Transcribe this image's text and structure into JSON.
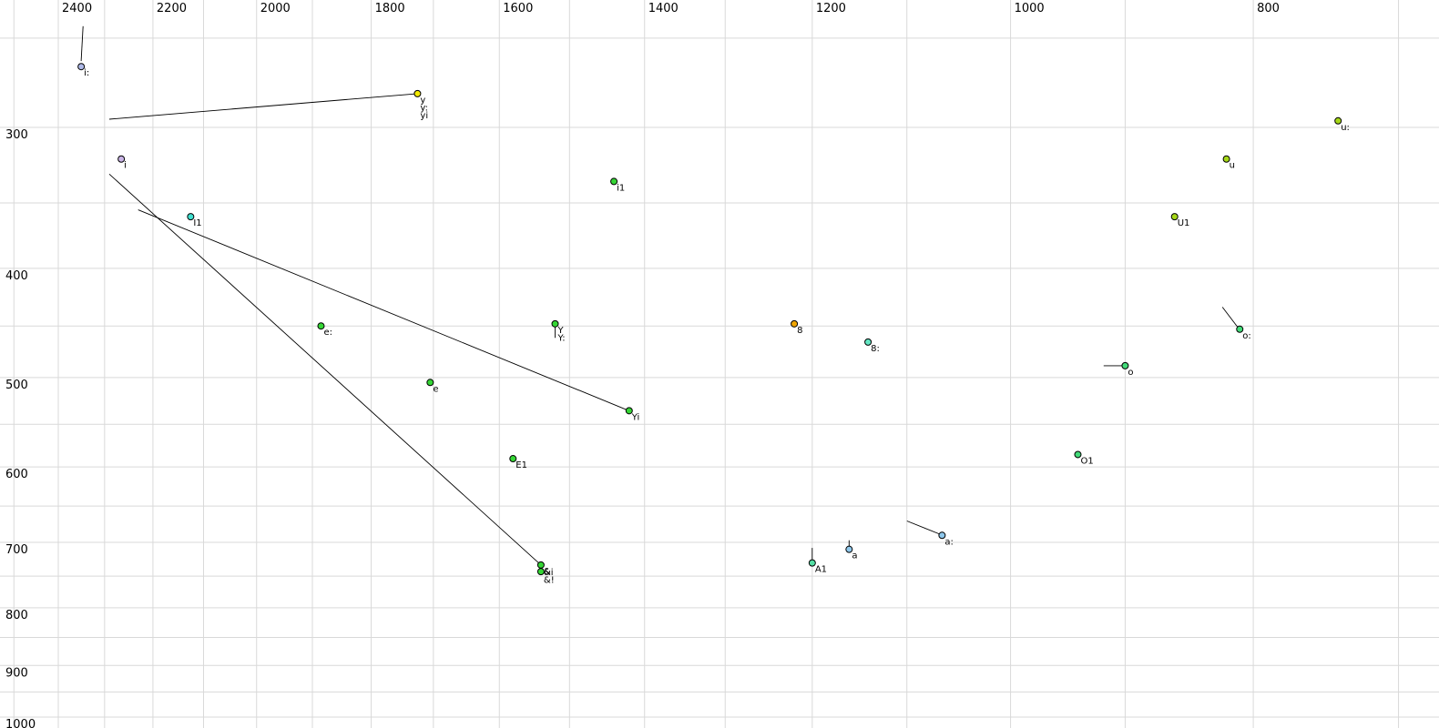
{
  "chart_data": {
    "type": "scatter",
    "description": "Vowel formant plot, F2 (Hz) on reversed log x-axis vs F1 (Hz) on log y-axis",
    "x_axis": {
      "unit": "Hz",
      "scale": "log",
      "reversed": true,
      "tick_labels": [
        2400,
        2200,
        2000,
        1800,
        1600,
        1400,
        1200,
        1000,
        800
      ],
      "gridlines": [
        2500,
        2400,
        2300,
        2200,
        2100,
        2000,
        1900,
        1800,
        1700,
        1600,
        1500,
        1400,
        1300,
        1200,
        1100,
        1000,
        900,
        800,
        700
      ]
    },
    "y_axis": {
      "unit": "Hz",
      "scale": "log",
      "tick_labels": [
        300,
        400,
        500,
        600,
        700,
        800,
        900,
        1000
      ],
      "gridlines": [
        250,
        300,
        350,
        400,
        450,
        500,
        550,
        600,
        650,
        700,
        750,
        800,
        850,
        900,
        950,
        1000
      ]
    },
    "grid_color": "#d9d9d9",
    "line_color": "#000000",
    "points": [
      {
        "labels": [
          "i:"
        ],
        "f2": 2350,
        "f1": 265,
        "color": "#aeb9e8"
      },
      {
        "labels": [
          "y",
          "y:",
          "yi"
        ],
        "f2": 1725,
        "f1": 280,
        "color": "#f2e900"
      },
      {
        "labels": [
          "i"
        ],
        "f2": 2265,
        "f1": 320,
        "color": "#c9b4e6"
      },
      {
        "labels": [
          "I1"
        ],
        "f2": 2125,
        "f1": 360,
        "color": "#40e0d0"
      },
      {
        "labels": [
          "i1"
        ],
        "f2": 1440,
        "f1": 335,
        "color": "#35d635"
      },
      {
        "labels": [
          "u:"
        ],
        "f2": 740,
        "f1": 296,
        "color": "#a5d717"
      },
      {
        "labels": [
          "u"
        ],
        "f2": 820,
        "f1": 320,
        "color": "#a5d717"
      },
      {
        "labels": [
          "U1"
        ],
        "f2": 860,
        "f1": 360,
        "color": "#a5d717"
      },
      {
        "labels": [
          "e:"
        ],
        "f2": 1885,
        "f1": 450,
        "color": "#35d635"
      },
      {
        "labels": [
          "Y",
          "Y:"
        ],
        "f2": 1520,
        "f1": 448,
        "color": "#35d635"
      },
      {
        "labels": [
          "8"
        ],
        "f2": 1220,
        "f1": 448,
        "color": "#f0a500"
      },
      {
        "labels": [
          "8:"
        ],
        "f2": 1140,
        "f1": 465,
        "color": "#63e6c3"
      },
      {
        "labels": [
          "o:"
        ],
        "f2": 810,
        "f1": 453,
        "color": "#42da78"
      },
      {
        "labels": [
          "o"
        ],
        "f2": 900,
        "f1": 488,
        "color": "#42da78"
      },
      {
        "labels": [
          "e"
        ],
        "f2": 1705,
        "f1": 505,
        "color": "#35d635"
      },
      {
        "labels": [
          "Yi"
        ],
        "f2": 1420,
        "f1": 535,
        "color": "#35d635"
      },
      {
        "labels": [
          "E1"
        ],
        "f2": 1580,
        "f1": 590,
        "color": "#35d635"
      },
      {
        "labels": [
          "O1"
        ],
        "f2": 940,
        "f1": 585,
        "color": "#42da78"
      },
      {
        "labels": [
          "a:"
        ],
        "f2": 1065,
        "f1": 690,
        "color": "#8fc8ec"
      },
      {
        "labels": [
          "a"
        ],
        "f2": 1160,
        "f1": 710,
        "color": "#8fc8ec"
      },
      {
        "labels": [
          "A1"
        ],
        "f2": 1200,
        "f1": 730,
        "color": "#55dfa5"
      },
      {
        "labels": [
          "&"
        ],
        "f2": 1540,
        "f1": 733,
        "color": "#35d635"
      },
      {
        "labels": [
          "&i",
          "&!"
        ],
        "f2": 1540,
        "f1": 743,
        "color": "#35d635",
        "label_dy": -4
      }
    ],
    "trajectories": [
      {
        "name": "i:-tail",
        "path": [
          [
            2346,
            244
          ],
          [
            2350,
            262
          ]
        ]
      },
      {
        "name": "y-line",
        "path": [
          [
            2290,
            295
          ],
          [
            1725,
            280
          ]
        ]
      },
      {
        "name": "long-line-to-ae",
        "path": [
          [
            2290,
            330
          ],
          [
            1540,
            733
          ]
        ]
      },
      {
        "name": "long-line-to-Yi",
        "path": [
          [
            2230,
            355
          ],
          [
            1420,
            535
          ]
        ]
      },
      {
        "name": "Y-tail",
        "path": [
          [
            1520,
            449
          ],
          [
            1520,
            461
          ]
        ]
      },
      {
        "name": "o-tail",
        "path": [
          [
            918,
            488
          ],
          [
            901,
            488
          ]
        ]
      },
      {
        "name": "o:-tail",
        "path": [
          [
            823,
            433
          ],
          [
            811,
            452
          ]
        ]
      },
      {
        "name": "a:-tail",
        "path": [
          [
            1100,
            670
          ],
          [
            1066,
            689
          ]
        ]
      },
      {
        "name": "a-tail",
        "path": [
          [
            1160,
            697
          ],
          [
            1160,
            709
          ]
        ]
      },
      {
        "name": "A1-tail",
        "path": [
          [
            1200,
            708
          ],
          [
            1200,
            729
          ]
        ]
      }
    ]
  }
}
